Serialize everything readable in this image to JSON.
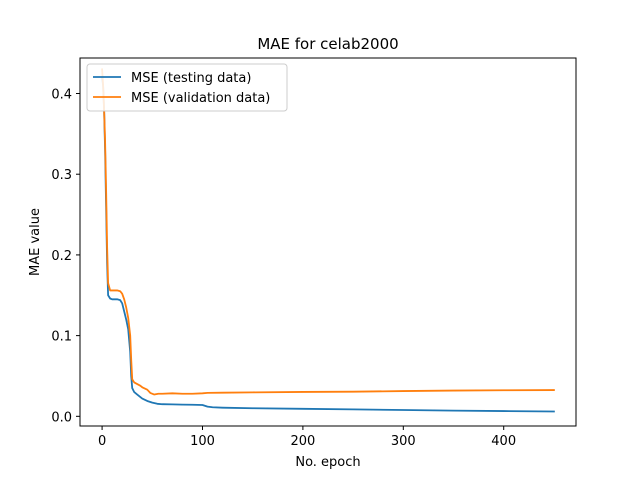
{
  "chart_data": {
    "type": "line",
    "title": "MAE for celab2000",
    "xlabel": "No. epoch",
    "ylabel": "MAE value",
    "xlim": [
      -22,
      472
    ],
    "ylim": [
      -0.012,
      0.444
    ],
    "xticks": [
      0,
      100,
      200,
      300,
      400
    ],
    "yticks": [
      0.0,
      0.1,
      0.2,
      0.3,
      0.4
    ],
    "grid": false,
    "legend_position": "upper-left",
    "series": [
      {
        "name": "MSE (testing data)",
        "color": "#1f77b4",
        "points": [
          [
            0,
            0.42
          ],
          [
            1,
            0.41
          ],
          [
            2,
            0.38
          ],
          [
            3,
            0.33
          ],
          [
            4,
            0.26
          ],
          [
            5,
            0.19
          ],
          [
            6,
            0.15
          ],
          [
            8,
            0.146
          ],
          [
            10,
            0.145
          ],
          [
            15,
            0.145
          ],
          [
            18,
            0.144
          ],
          [
            20,
            0.14
          ],
          [
            22,
            0.13
          ],
          [
            24,
            0.12
          ],
          [
            26,
            0.108
          ],
          [
            28,
            0.08
          ],
          [
            29,
            0.05
          ],
          [
            30,
            0.035
          ],
          [
            32,
            0.03
          ],
          [
            35,
            0.027
          ],
          [
            40,
            0.022
          ],
          [
            45,
            0.019
          ],
          [
            50,
            0.017
          ],
          [
            55,
            0.0155
          ],
          [
            60,
            0.015
          ],
          [
            70,
            0.0148
          ],
          [
            80,
            0.0145
          ],
          [
            90,
            0.0143
          ],
          [
            100,
            0.014
          ],
          [
            105,
            0.012
          ],
          [
            110,
            0.0112
          ],
          [
            120,
            0.0107
          ],
          [
            150,
            0.01
          ],
          [
            200,
            0.0093
          ],
          [
            250,
            0.0086
          ],
          [
            300,
            0.0078
          ],
          [
            350,
            0.0071
          ],
          [
            400,
            0.0065
          ],
          [
            450,
            0.006
          ]
        ]
      },
      {
        "name": "MSE (validation data)",
        "color": "#ff7f0e",
        "points": [
          [
            0,
            0.43
          ],
          [
            1,
            0.41
          ],
          [
            2,
            0.38
          ],
          [
            3,
            0.34
          ],
          [
            4,
            0.28
          ],
          [
            5,
            0.21
          ],
          [
            6,
            0.165
          ],
          [
            8,
            0.156
          ],
          [
            10,
            0.156
          ],
          [
            15,
            0.156
          ],
          [
            18,
            0.155
          ],
          [
            20,
            0.152
          ],
          [
            22,
            0.145
          ],
          [
            24,
            0.135
          ],
          [
            26,
            0.122
          ],
          [
            28,
            0.1
          ],
          [
            29,
            0.07
          ],
          [
            30,
            0.046
          ],
          [
            32,
            0.042
          ],
          [
            35,
            0.04
          ],
          [
            38,
            0.038
          ],
          [
            40,
            0.036
          ],
          [
            45,
            0.033
          ],
          [
            48,
            0.029
          ],
          [
            52,
            0.027
          ],
          [
            56,
            0.028
          ],
          [
            60,
            0.028
          ],
          [
            70,
            0.0285
          ],
          [
            80,
            0.028
          ],
          [
            90,
            0.028
          ],
          [
            100,
            0.0285
          ],
          [
            105,
            0.029
          ],
          [
            120,
            0.0293
          ],
          [
            150,
            0.0297
          ],
          [
            200,
            0.0302
          ],
          [
            250,
            0.0305
          ],
          [
            300,
            0.0313
          ],
          [
            350,
            0.0319
          ],
          [
            400,
            0.0323
          ],
          [
            450,
            0.0325
          ]
        ]
      }
    ]
  }
}
